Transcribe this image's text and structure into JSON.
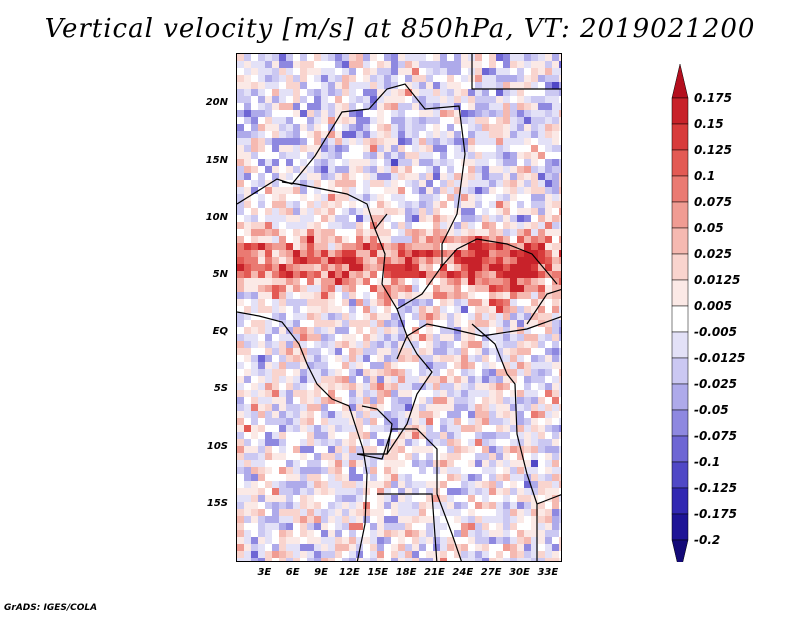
{
  "title": "Vertical velocity [m/s] at 850hPa, VT: 2019021200",
  "footer": "GrADS: IGES/COLA",
  "lat_ticks": [
    {
      "label": "20N",
      "deg": 20
    },
    {
      "label": "15N",
      "deg": 15
    },
    {
      "label": "10N",
      "deg": 10
    },
    {
      "label": "5N",
      "deg": 5
    },
    {
      "label": "EQ",
      "deg": 0
    },
    {
      "label": "5S",
      "deg": -5
    },
    {
      "label": "10S",
      "deg": -10
    },
    {
      "label": "15S",
      "deg": -15
    }
  ],
  "lon_ticks": [
    {
      "label": "3E",
      "deg": 3
    },
    {
      "label": "6E",
      "deg": 6
    },
    {
      "label": "9E",
      "deg": 9
    },
    {
      "label": "12E",
      "deg": 12
    },
    {
      "label": "15E",
      "deg": 15
    },
    {
      "label": "18E",
      "deg": 18
    },
    {
      "label": "21E",
      "deg": 21
    },
    {
      "label": "24E",
      "deg": 24
    },
    {
      "label": "27E",
      "deg": 27
    },
    {
      "label": "30E",
      "deg": 30
    },
    {
      "label": "33E",
      "deg": 33
    }
  ],
  "extent": {
    "lon_min": 0,
    "lon_max": 34.5,
    "lat_min": -20,
    "lat_max": 24.5
  },
  "colorbar": {
    "levels": [
      "0.175",
      "0.15",
      "0.125",
      "0.1",
      "0.075",
      "0.05",
      "0.025",
      "0.0125",
      "0.005",
      "-0.005",
      "-0.0125",
      "-0.025",
      "-0.05",
      "-0.075",
      "-0.1",
      "-0.125",
      "-0.175",
      "-0.2"
    ],
    "colors": [
      "#b40f1e",
      "#c8222a",
      "#d83b3b",
      "#e35a54",
      "#ea7a72",
      "#f09c93",
      "#f5b9b1",
      "#f9d4ce",
      "#fbe9e6",
      "#ffffff",
      "#e3e1f7",
      "#cbc8f2",
      "#aeaaea",
      "#8e88e0",
      "#6e66d4",
      "#5048c6",
      "#3228b2",
      "#1e1496",
      "#140a78"
    ]
  },
  "field": {
    "seed": 20190212,
    "red_bands_deg_lat": [
      7.5,
      5.5
    ],
    "hot_spot_lon": 28
  }
}
